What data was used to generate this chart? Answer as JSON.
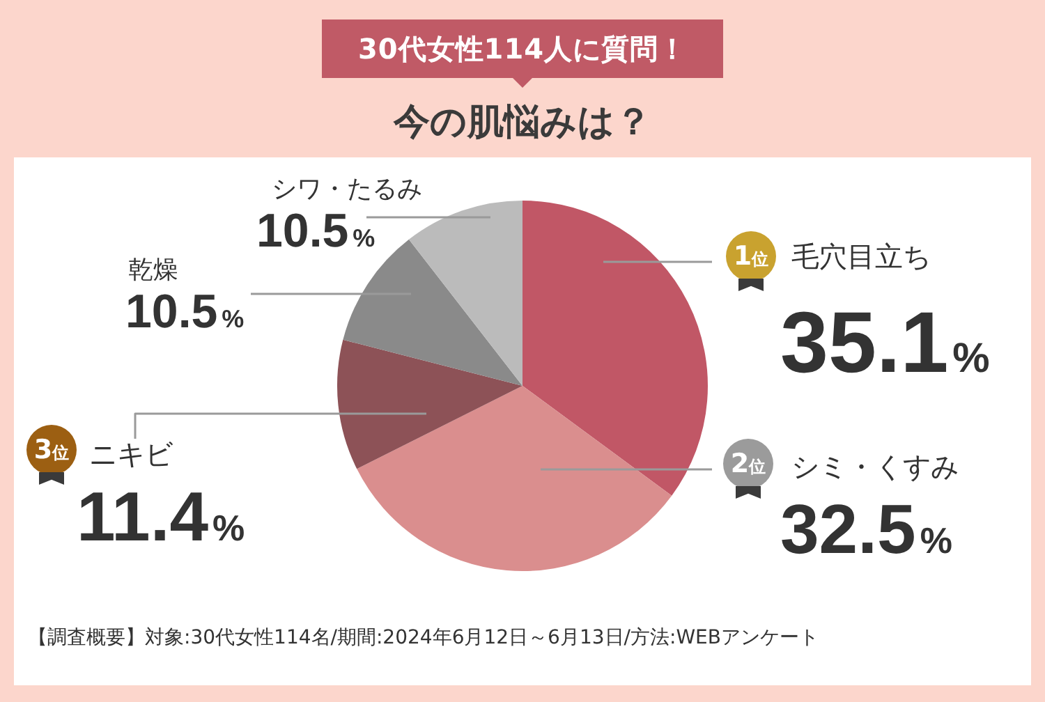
{
  "chart_data": {
    "type": "pie",
    "title": "30代女性114人に質問！",
    "subtitle": "今の肌悩みは？",
    "categories": [
      "毛穴目立ち",
      "シミ・くすみ",
      "ニキビ",
      "乾燥",
      "シワ・たるみ"
    ],
    "values": [
      35.1,
      32.5,
      11.4,
      10.5,
      10.5
    ],
    "colors": [
      "#c15766",
      "#da8e8e",
      "#8d5257",
      "#8a8a8a",
      "#bbbbbb"
    ],
    "value_labels": [
      "35.1%",
      "32.5%",
      "11.4%",
      "10.5%",
      "10.5%"
    ],
    "annotations": [
      {
        "text": "1位",
        "x": "毛穴目立ち"
      },
      {
        "text": "2位",
        "x": "シミ・くすみ"
      },
      {
        "text": "3位",
        "x": "ニキビ"
      },
      "【調査概要】対象:30代女性114名/期間:2024年6月12日～6月13日/方法:WEBアンケート"
    ]
  }
}
